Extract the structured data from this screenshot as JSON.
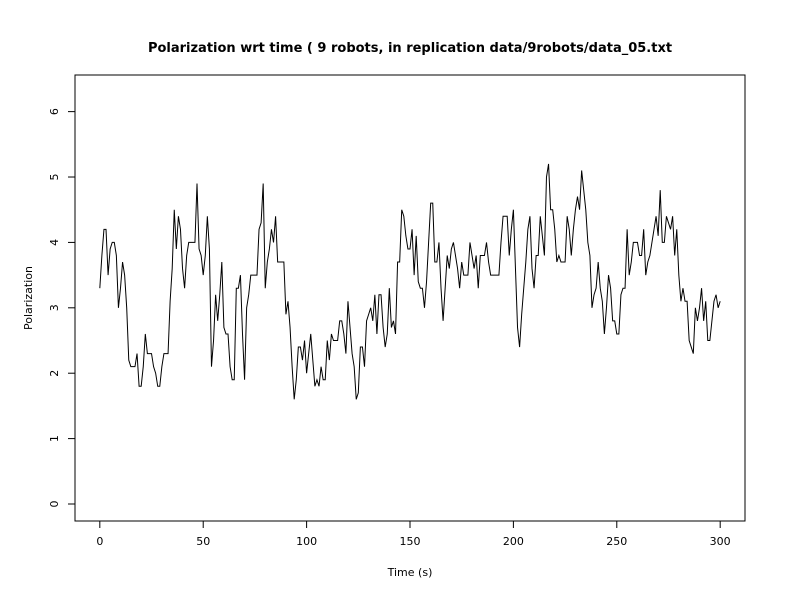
{
  "chart_data": {
    "type": "line",
    "title": "Polarization wrt time ( 9 robots, in replication  data/9robots/data_05.txt",
    "xlabel": "Time (s)",
    "ylabel": "Polarization",
    "xlim": [
      -12,
      312
    ],
    "ylim": [
      -0.26,
      6.56
    ],
    "xticks": [
      0,
      50,
      100,
      150,
      200,
      250,
      300
    ],
    "yticks": [
      0,
      1,
      2,
      3,
      4,
      5,
      6
    ],
    "grid": false,
    "line_color": "#000000",
    "series": [
      {
        "x": [
          0,
          1,
          2,
          3,
          4,
          5,
          6,
          7,
          8,
          9,
          10,
          11,
          12,
          13,
          14,
          15,
          16,
          17,
          18,
          19,
          20,
          21,
          22,
          23,
          24,
          25,
          26,
          27,
          28,
          29,
          30,
          31,
          32,
          33,
          34,
          35,
          36,
          37,
          38,
          39,
          40,
          41,
          42,
          43,
          44,
          45,
          46,
          47,
          48,
          49,
          50,
          51,
          52,
          53,
          54,
          55,
          56,
          57,
          58,
          59,
          60,
          61,
          62,
          63,
          64,
          65,
          66,
          67,
          68,
          69,
          70,
          71,
          72,
          73,
          74,
          75,
          76,
          77,
          78,
          79,
          80,
          81,
          82,
          83,
          84,
          85,
          86,
          87,
          88,
          89,
          90,
          91,
          92,
          93,
          94,
          95,
          96,
          97,
          98,
          99,
          100,
          101,
          102,
          103,
          104,
          105,
          106,
          107,
          108,
          109,
          110,
          111,
          112,
          113,
          114,
          115,
          116,
          117,
          118,
          119,
          120,
          121,
          122,
          123,
          124,
          125,
          126,
          127,
          128,
          129,
          130,
          131,
          132,
          133,
          134,
          135,
          136,
          137,
          138,
          139,
          140,
          141,
          142,
          143,
          144,
          145,
          146,
          147,
          148,
          149,
          150,
          151,
          152,
          153,
          154,
          155,
          156,
          157,
          158,
          159,
          160,
          161,
          162,
          163,
          164,
          165,
          166,
          167,
          168,
          169,
          170,
          171,
          172,
          173,
          174,
          175,
          176,
          177,
          178,
          179,
          180,
          181,
          182,
          183,
          184,
          185,
          186,
          187,
          188,
          189,
          190,
          191,
          192,
          193,
          194,
          195,
          196,
          197,
          198,
          199,
          200,
          201,
          202,
          203,
          204,
          205,
          206,
          207,
          208,
          209,
          210,
          211,
          212,
          213,
          214,
          215,
          216,
          217,
          218,
          219,
          220,
          221,
          222,
          223,
          224,
          225,
          226,
          227,
          228,
          229,
          230,
          231,
          232,
          233,
          234,
          235,
          236,
          237,
          238,
          239,
          240,
          241,
          242,
          243,
          244,
          245,
          246,
          247,
          248,
          249,
          250,
          251,
          252,
          253,
          254,
          255,
          256,
          257,
          258,
          259,
          260,
          261,
          262,
          263,
          264,
          265,
          266,
          267,
          268,
          269,
          270,
          271,
          272,
          273,
          274,
          275,
          276,
          277,
          278,
          279,
          280,
          281,
          282,
          283,
          284,
          285,
          286,
          287,
          288,
          289,
          290,
          291,
          292,
          293,
          294,
          295,
          296,
          297,
          298,
          299,
          300
        ],
        "values": [
          3.3,
          3.8,
          4.2,
          4.2,
          3.5,
          3.9,
          4.0,
          4.0,
          3.8,
          3.0,
          3.3,
          3.7,
          3.5,
          3.0,
          2.2,
          2.1,
          2.1,
          2.1,
          2.3,
          1.8,
          1.8,
          2.1,
          2.6,
          2.3,
          2.3,
          2.3,
          2.1,
          2.0,
          1.8,
          1.8,
          2.1,
          2.3,
          2.3,
          2.3,
          3.1,
          3.6,
          4.5,
          3.9,
          4.4,
          4.2,
          3.6,
          3.3,
          3.8,
          4.0,
          4.0,
          4.0,
          4.0,
          4.9,
          3.9,
          3.8,
          3.5,
          3.8,
          4.4,
          3.9,
          2.1,
          2.5,
          3.2,
          2.8,
          3.2,
          3.7,
          2.7,
          2.6,
          2.6,
          2.1,
          1.9,
          1.9,
          3.3,
          3.3,
          3.5,
          2.6,
          1.9,
          3.0,
          3.2,
          3.5,
          3.5,
          3.5,
          3.5,
          4.2,
          4.3,
          4.9,
          3.3,
          3.7,
          3.9,
          4.2,
          4.0,
          4.4,
          3.7,
          3.7,
          3.7,
          3.7,
          2.9,
          3.1,
          2.7,
          2.1,
          1.6,
          1.9,
          2.4,
          2.4,
          2.2,
          2.5,
          2.0,
          2.3,
          2.6,
          2.2,
          1.8,
          1.9,
          1.8,
          2.1,
          1.9,
          1.9,
          2.5,
          2.2,
          2.6,
          2.5,
          2.5,
          2.5,
          2.8,
          2.8,
          2.6,
          2.3,
          3.1,
          2.7,
          2.3,
          2.1,
          1.6,
          1.7,
          2.4,
          2.4,
          2.1,
          2.8,
          2.9,
          3.0,
          2.8,
          3.2,
          2.6,
          3.2,
          3.2,
          2.7,
          2.4,
          2.6,
          3.3,
          2.7,
          2.8,
          2.6,
          3.7,
          3.7,
          4.5,
          4.4,
          4.1,
          3.9,
          3.9,
          4.2,
          3.5,
          4.1,
          3.4,
          3.3,
          3.3,
          3.0,
          3.4,
          4.0,
          4.6,
          4.6,
          3.7,
          3.7,
          4.0,
          3.3,
          2.8,
          3.3,
          3.8,
          3.6,
          3.9,
          4.0,
          3.8,
          3.6,
          3.3,
          3.7,
          3.5,
          3.5,
          3.5,
          4.0,
          3.8,
          3.6,
          3.8,
          3.3,
          3.8,
          3.8,
          3.8,
          4.0,
          3.7,
          3.5,
          3.5,
          3.5,
          3.5,
          3.5,
          4.0,
          4.4,
          4.4,
          4.4,
          3.8,
          4.2,
          4.5,
          3.6,
          2.7,
          2.4,
          2.9,
          3.3,
          3.7,
          4.2,
          4.4,
          3.6,
          3.3,
          3.8,
          3.8,
          4.4,
          4.1,
          3.8,
          5.0,
          5.2,
          4.5,
          4.5,
          4.2,
          3.7,
          3.8,
          3.7,
          3.7,
          3.7,
          4.4,
          4.2,
          3.8,
          4.2,
          4.5,
          4.7,
          4.5,
          5.1,
          4.8,
          4.5,
          4.0,
          3.8,
          3.0,
          3.2,
          3.3,
          3.7,
          3.3,
          3.1,
          2.6,
          3.0,
          3.5,
          3.3,
          2.8,
          2.8,
          2.6,
          2.6,
          3.2,
          3.3,
          3.3,
          4.2,
          3.5,
          3.7,
          4.0,
          4.0,
          4.0,
          3.8,
          3.8,
          4.2,
          3.5,
          3.7,
          3.8,
          4.0,
          4.2,
          4.4,
          4.1,
          4.8,
          4.0,
          4.0,
          4.4,
          4.3,
          4.2,
          4.4,
          3.8,
          4.2,
          3.5,
          3.1,
          3.3,
          3.1,
          3.1,
          2.5,
          2.4,
          2.3,
          3.0,
          2.8,
          3.0,
          3.3,
          2.8,
          3.1,
          2.5,
          2.5,
          2.8,
          3.1,
          3.2,
          3.0,
          3.1
        ]
      }
    ]
  }
}
